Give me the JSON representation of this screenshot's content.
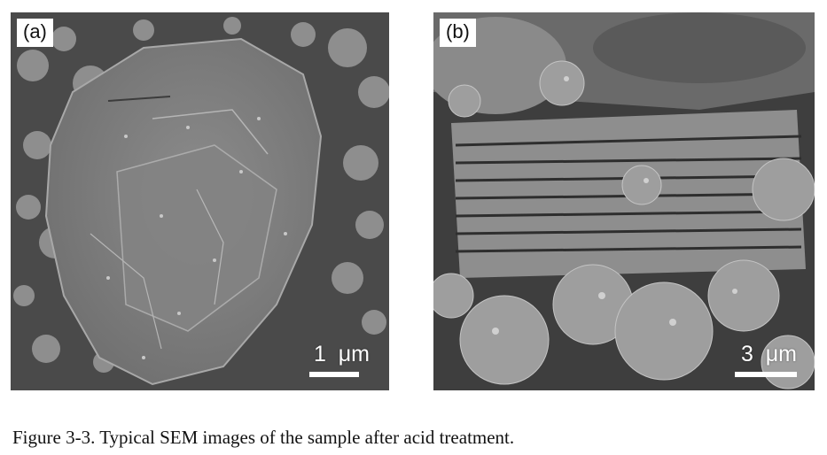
{
  "panels": [
    {
      "label": "(a)",
      "scale_bar": "1  μm"
    },
    {
      "label": "(b)",
      "scale_bar": "3  μm"
    }
  ],
  "caption": "Figure 3-3. Typical SEM images of the sample after acid treatment."
}
